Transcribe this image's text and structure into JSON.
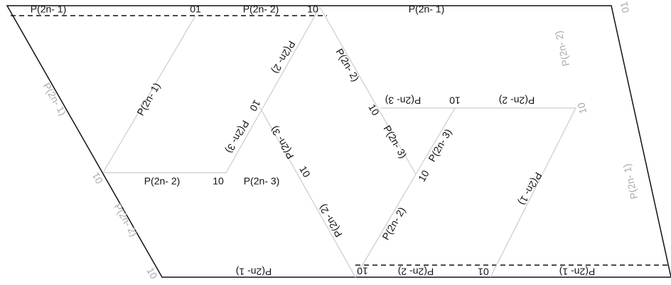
{
  "labels": [
    "P(2n- 1)",
    "01",
    "P(2n- 2)",
    "10",
    "P(2n- 1)",
    "01",
    "P(2n- 2)",
    "10",
    "P(2n- 1)",
    "P(2n- 1)",
    "P(2n- 2)",
    "10",
    "01",
    "P(2n- 1)",
    "P(2n- 2)",
    "10",
    "P(2n- 3)",
    "P(2n- 2)",
    "10",
    "P(2n- 3)",
    "P(2n- 3)",
    "10",
    "P(2n- 2)",
    "P(2n- 2)",
    "10",
    "P(2n- 3)",
    "P(2n- 3)",
    "10",
    "P(2n- 2)",
    "P(2n- 3)",
    "10",
    "P(2n- 2)",
    "P(2n- 1)",
    "P(2n- 1)",
    "10",
    "P(2n- 2)",
    "01",
    "P(2n- 1)"
  ]
}
